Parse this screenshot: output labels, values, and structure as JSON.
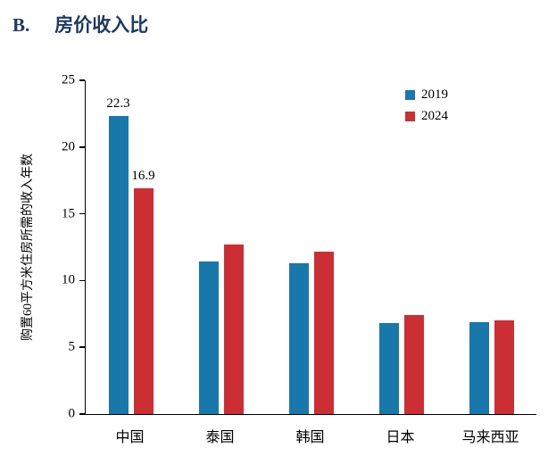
{
  "title": {
    "prefix": "B.",
    "text": "房价收入比"
  },
  "colors": {
    "title": "#1f3864",
    "axis": "#000000",
    "series_2019": "#1878ac",
    "series_2024": "#cb2f33"
  },
  "chart_data": {
    "type": "bar",
    "title": "B. 房价收入比",
    "categories": [
      "中国",
      "泰国",
      "韩国",
      "日本",
      "马来西亚"
    ],
    "series": [
      {
        "name": "2019",
        "color": "#1878ac",
        "values": [
          22.3,
          11.4,
          11.3,
          6.8,
          6.9
        ]
      },
      {
        "name": "2024",
        "color": "#cb2f33",
        "values": [
          16.9,
          12.7,
          12.2,
          7.4,
          7.0
        ]
      }
    ],
    "value_labels": [
      [
        "22.3",
        null,
        null,
        null,
        null
      ],
      [
        "16.9",
        null,
        null,
        null,
        null
      ]
    ],
    "xlabel": "",
    "ylabel": "购置60平方米住房所需的收入年数",
    "ylim": [
      0,
      25
    ],
    "yticks": [
      0,
      5,
      10,
      15,
      20,
      25
    ],
    "grid": false,
    "legend_position": "top-right"
  }
}
